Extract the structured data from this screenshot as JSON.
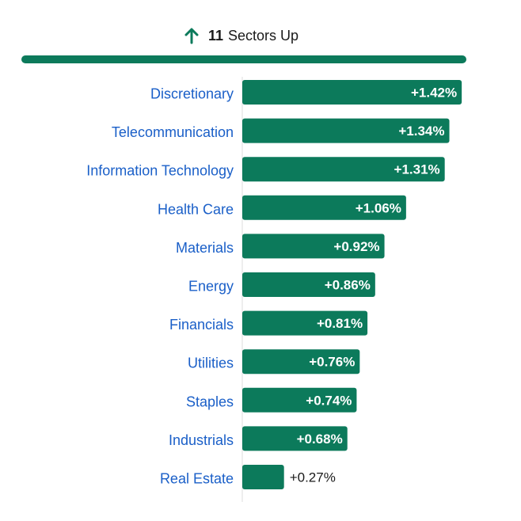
{
  "header": {
    "icon": "arrow-up-icon",
    "count": "11",
    "label": "Sectors Up"
  },
  "colors": {
    "bar": "#0c7a5b",
    "category_text": "#1a5fc8",
    "value_text_inside": "#ffffff",
    "value_text_outside": "#1a1a1a",
    "axis": "#dddddd"
  },
  "chart_data": {
    "type": "bar",
    "orientation": "horizontal",
    "categories": [
      "Discretionary",
      "Telecommunication",
      "Information Technology",
      "Health Care",
      "Materials",
      "Energy",
      "Financials",
      "Utilities",
      "Staples",
      "Industrials",
      "Real Estate"
    ],
    "values": [
      1.42,
      1.34,
      1.31,
      1.06,
      0.92,
      0.86,
      0.81,
      0.76,
      0.74,
      0.68,
      0.27
    ],
    "labels": [
      "+1.42%",
      "+1.34%",
      "+1.31%",
      "+1.06%",
      "+0.92%",
      "+0.86%",
      "+0.81%",
      "+0.76%",
      "+0.74%",
      "+0.68%",
      "+0.27%"
    ],
    "xlim": [
      0,
      1.45
    ],
    "grid": false,
    "legend": "none"
  }
}
